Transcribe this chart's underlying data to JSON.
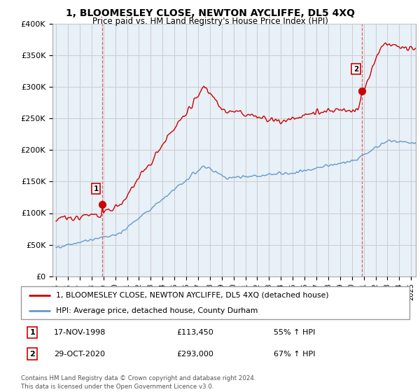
{
  "title": "1, BLOOMESLEY CLOSE, NEWTON AYCLIFFE, DL5 4XQ",
  "subtitle": "Price paid vs. HM Land Registry's House Price Index (HPI)",
  "legend_line1": "1, BLOOMESLEY CLOSE, NEWTON AYCLIFFE, DL5 4XQ (detached house)",
  "legend_line2": "HPI: Average price, detached house, County Durham",
  "sale1_date": "17-NOV-1998",
  "sale1_price": "£113,450",
  "sale1_hpi": "55% ↑ HPI",
  "sale2_date": "29-OCT-2020",
  "sale2_price": "£293,000",
  "sale2_hpi": "67% ↑ HPI",
  "footer": "Contains HM Land Registry data © Crown copyright and database right 2024.\nThis data is licensed under the Open Government Licence v3.0.",
  "property_color": "#cc0000",
  "hpi_color": "#6699cc",
  "marker_color": "#cc0000",
  "vline_color": "#dd4444",
  "background_color": "#ffffff",
  "chart_bg_color": "#e8f0f8",
  "grid_color": "#cccccc",
  "ylim": [
    0,
    400000
  ],
  "yticks": [
    0,
    50000,
    100000,
    150000,
    200000,
    250000,
    300000,
    350000,
    400000
  ],
  "ytick_labels": [
    "£0",
    "£50K",
    "£100K",
    "£150K",
    "£200K",
    "£250K",
    "£300K",
    "£350K",
    "£400K"
  ],
  "sale1_x": 1998.88,
  "sale1_y": 113450,
  "sale2_x": 2020.83,
  "sale2_y": 293000,
  "xlim_left": 1994.7,
  "xlim_right": 2025.4
}
